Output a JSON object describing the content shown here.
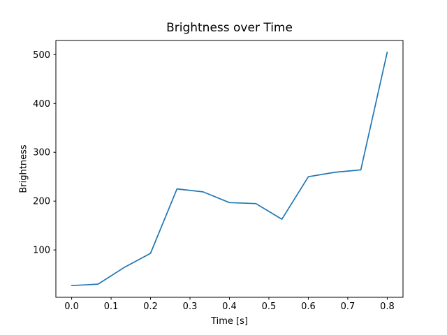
{
  "figure": {
    "background_color": "#ffffff",
    "text_color": "#000000",
    "spine_color": "#000000"
  },
  "chart_data": {
    "type": "line",
    "title": "Brightness over Time",
    "xlabel": "Time [s]",
    "ylabel": "Brightness",
    "x": [
      0.0,
      0.067,
      0.133,
      0.2,
      0.267,
      0.333,
      0.4,
      0.467,
      0.533,
      0.6,
      0.667,
      0.733,
      0.8
    ],
    "series": [
      {
        "name": "brightness",
        "color": "#1f77b4",
        "values": [
          27,
          30,
          64,
          93,
          225,
          219,
          197,
          195,
          163,
          250,
          259,
          264,
          505
        ]
      }
    ],
    "xticks": [
      0.0,
      0.1,
      0.2,
      0.3,
      0.4,
      0.5,
      0.6,
      0.7,
      0.8
    ],
    "xtick_labels": [
      "0.0",
      "0.1",
      "0.2",
      "0.3",
      "0.4",
      "0.5",
      "0.6",
      "0.7",
      "0.8"
    ],
    "yticks": [
      100,
      200,
      300,
      400,
      500
    ],
    "ytick_labels": [
      "100",
      "200",
      "300",
      "400",
      "500"
    ],
    "xlim": [
      -0.04,
      0.84
    ],
    "ylim": [
      3,
      529
    ],
    "grid": false,
    "legend_position": "none"
  }
}
